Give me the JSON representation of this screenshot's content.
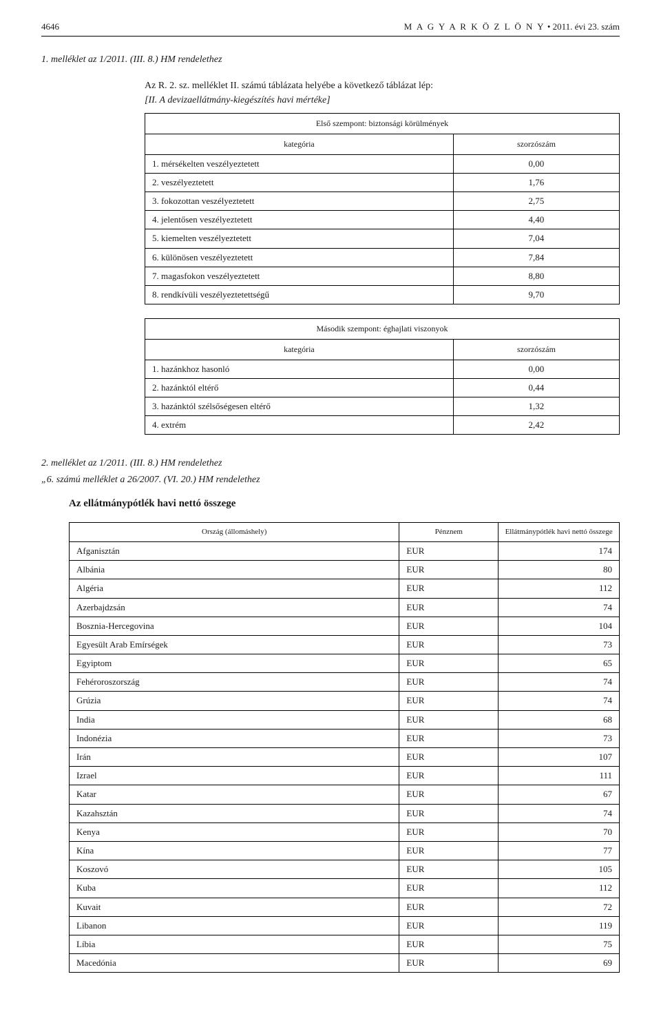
{
  "header": {
    "page_number": "4646",
    "publication": "M A G Y A R   K Ö Z L Ö N Y",
    "bullet": "•",
    "issue": "2011. évi 23. szám"
  },
  "attachment1": {
    "ref": "1. melléklet az 1/2011. (III. 8.) HM rendelethez",
    "intro_line1": "Az R. 2. sz. melléklet II. számú táblázata helyébe a következő táblázat lép:",
    "intro_line2": "[II. A devizaellátmány-kiegészítés havi mértéke]",
    "table1": {
      "title": "Első szempont: biztonsági körülmények",
      "col1": "kategória",
      "col2": "szorzószám",
      "rows": [
        {
          "cat": "1. mérsékelten veszélyeztetett",
          "val": "0,00"
        },
        {
          "cat": "2. veszélyeztetett",
          "val": "1,76"
        },
        {
          "cat": "3. fokozottan veszélyeztetett",
          "val": "2,75"
        },
        {
          "cat": "4. jelentősen veszélyeztetett",
          "val": "4,40"
        },
        {
          "cat": "5. kiemelten veszélyeztetett",
          "val": "7,04"
        },
        {
          "cat": "6. különösen veszélyeztetett",
          "val": "7,84"
        },
        {
          "cat": "7. magasfokon veszélyeztetett",
          "val": "8,80"
        },
        {
          "cat": "8. rendkívüli veszélyeztetettségű",
          "val": "9,70"
        }
      ]
    },
    "table2": {
      "title": "Második szempont: éghajlati viszonyok",
      "col1": "kategória",
      "col2": "szorzószám",
      "rows": [
        {
          "cat": "1. hazánkhoz hasonló",
          "val": "0,00"
        },
        {
          "cat": "2. hazánktól eltérő",
          "val": "0,44"
        },
        {
          "cat": "3. hazánktól szélsőségesen eltérő",
          "val": "1,32"
        },
        {
          "cat": "4. extrém",
          "val": "2,42"
        }
      ]
    }
  },
  "attachment2": {
    "ref": "2. melléklet az 1/2011. (III. 8.) HM rendelethez",
    "subref": "„6. számú melléklet a 26/2007. (VI. 20.) HM rendelethez",
    "heading": "Az ellátmánypótlék havi nettó összege",
    "table": {
      "col1": "Ország (állomáshely)",
      "col2": "Pénznem",
      "col3": "Ellátmánypótlék havi nettó összege",
      "rows": [
        {
          "country": "Afganisztán",
          "currency": "EUR",
          "amount": "174"
        },
        {
          "country": "Albánia",
          "currency": "EUR",
          "amount": "80"
        },
        {
          "country": "Algéria",
          "currency": "EUR",
          "amount": "112"
        },
        {
          "country": "Azerbajdzsán",
          "currency": "EUR",
          "amount": "74"
        },
        {
          "country": "Bosznia-Hercegovina",
          "currency": "EUR",
          "amount": "104"
        },
        {
          "country": "Egyesült Arab Emírségek",
          "currency": "EUR",
          "amount": "73"
        },
        {
          "country": "Egyiptom",
          "currency": "EUR",
          "amount": "65"
        },
        {
          "country": "Fehéroroszország",
          "currency": "EUR",
          "amount": "74"
        },
        {
          "country": "Grúzia",
          "currency": "EUR",
          "amount": "74"
        },
        {
          "country": "India",
          "currency": "EUR",
          "amount": "68"
        },
        {
          "country": "Indonézia",
          "currency": "EUR",
          "amount": "73"
        },
        {
          "country": "Irán",
          "currency": "EUR",
          "amount": "107"
        },
        {
          "country": "Izrael",
          "currency": "EUR",
          "amount": "111"
        },
        {
          "country": "Katar",
          "currency": "EUR",
          "amount": "67"
        },
        {
          "country": "Kazahsztán",
          "currency": "EUR",
          "amount": "74"
        },
        {
          "country": "Kenya",
          "currency": "EUR",
          "amount": "70"
        },
        {
          "country": "Kína",
          "currency": "EUR",
          "amount": "77"
        },
        {
          "country": "Koszovó",
          "currency": "EUR",
          "amount": "105"
        },
        {
          "country": "Kuba",
          "currency": "EUR",
          "amount": "112"
        },
        {
          "country": "Kuvait",
          "currency": "EUR",
          "amount": "72"
        },
        {
          "country": "Libanon",
          "currency": "EUR",
          "amount": "119"
        },
        {
          "country": "Líbia",
          "currency": "EUR",
          "amount": "75"
        },
        {
          "country": "Macedónia",
          "currency": "EUR",
          "amount": "69"
        }
      ]
    }
  }
}
